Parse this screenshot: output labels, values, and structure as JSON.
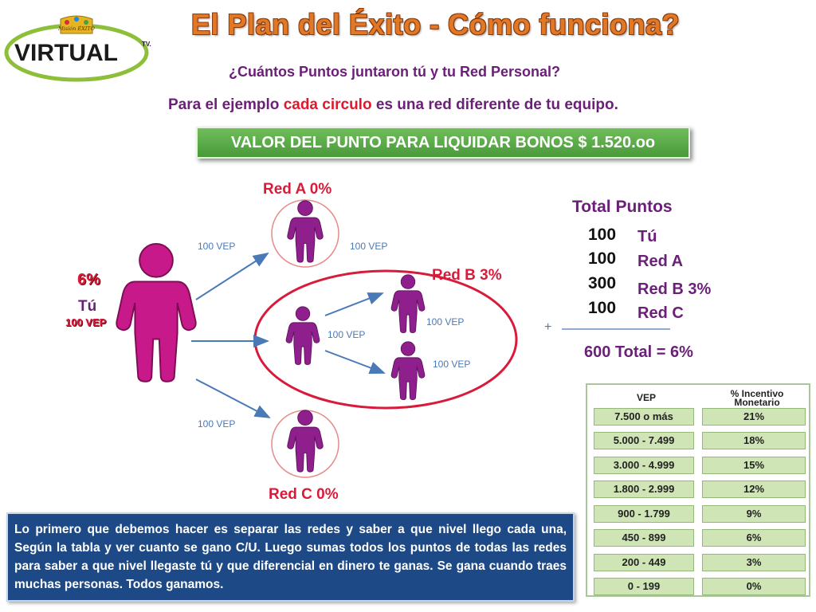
{
  "logo": {
    "top_text": "Misión ÉXITO",
    "brand": "VIRTUAL",
    "tv_mark": "TV."
  },
  "title": "El Plan del Éxito - Cómo funciona?",
  "subtitle": "¿Cuántos Puntos juntaron tú y tu Red Personal?",
  "explain": {
    "before": "Para el ejemplo ",
    "highlight": "cada circulo",
    "after": " es una red diferente de tu equipo."
  },
  "value_banner": "VALOR DEL PUNTO PARA LIQUIDAR BONOS $ 1.520.oo",
  "diagram": {
    "you_pct": "6%",
    "you_label": "Tú",
    "you_vep": "100 VEP",
    "red_a": "Red A 0%",
    "red_b": "Red B 3%",
    "red_c": "Red C 0%",
    "vep_labels": [
      "100 VEP",
      "100 VEP",
      "100 VEP",
      "100 VEP",
      "100 VEP",
      "100 VEP"
    ]
  },
  "totals": {
    "heading": "Total Puntos",
    "rows": [
      {
        "points": "100",
        "name": "Tú"
      },
      {
        "points": "100",
        "name": "Red A"
      },
      {
        "points": "300",
        "name": "Red B 3%"
      },
      {
        "points": "100",
        "name": "Red C"
      }
    ],
    "plus": "+",
    "result": "600 Total = 6%"
  },
  "incentive_table": {
    "col_vep": "VEP",
    "col_pct_line1": "% Incentivo",
    "col_pct_line2": "Monetario",
    "rows": [
      {
        "vep": "7.500 o más",
        "pct": "21%"
      },
      {
        "vep": "5.000 - 7.499",
        "pct": "18%"
      },
      {
        "vep": "3.000 - 4.999",
        "pct": "15%"
      },
      {
        "vep": "1.800 - 2.999",
        "pct": "12%"
      },
      {
        "vep": "900 - 1.799",
        "pct": "9%"
      },
      {
        "vep": "450 - 899",
        "pct": "6%"
      },
      {
        "vep": "200 - 449",
        "pct": "3%"
      },
      {
        "vep": "0 - 199",
        "pct": "0%"
      }
    ]
  },
  "note": "Lo primero que debemos hacer es separar las redes y saber a que nivel llego cada una,  Según la tabla y ver cuanto se gano C/U. Luego sumas todos los puntos de todas las redes  para saber a que nivel llegaste tú y que diferencial  en dinero te ganas. Se gana cuando traes muchas personas. Todos ganamos.",
  "colors": {
    "title": "#e07826",
    "purple": "#8e1f8c",
    "red": "#d81b3a",
    "green_bar": "#5aac48",
    "note_bg": "#1d4a86",
    "arrow": "#4a79b8"
  }
}
